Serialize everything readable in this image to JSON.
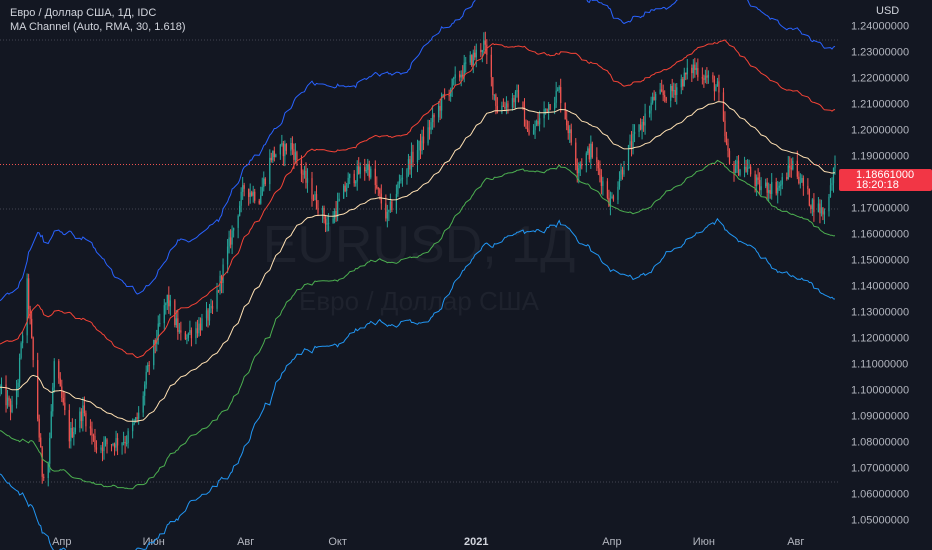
{
  "header": {
    "title": "Евро / Доллар США, 1Д, IDC",
    "indicator": "MA Channel (Auto, RMA, 30, 1.618)"
  },
  "currency": "USD",
  "watermark": {
    "symbol": "EURUSD, 1Д",
    "name": "Евро / Доллар США"
  },
  "last_price": {
    "price": "1.18661000",
    "countdown": "18:20:18",
    "color": "#f23645"
  },
  "colors": {
    "background": "#131722",
    "up_candle": "#26a69a",
    "down_candle": "#ef5350",
    "upper_band": "#2962ff",
    "upper_mid": "#f44336",
    "ma": "#ffe0b2",
    "lower_mid": "#4caf50",
    "lower_band": "#2196f3"
  },
  "chart_data": {
    "type": "candlestick",
    "title": "Евро / Доллар США, 1Д, IDC",
    "ylim": [
      1.045,
      1.255
    ],
    "y_ticks": [
      "1.24000000",
      "1.23000000",
      "1.22000000",
      "1.21000000",
      "1.20000000",
      "1.19000000",
      "1.18000000",
      "1.17000000",
      "1.16000000",
      "1.15000000",
      "1.14000000",
      "1.13000000",
      "1.12000000",
      "1.11000000",
      "1.10000000",
      "1.09000000",
      "1.08000000",
      "1.07000000",
      "1.06000000",
      "1.05000000"
    ],
    "x_ticks": [
      {
        "label": "Апр",
        "date": "2020-04-01"
      },
      {
        "label": "Июн",
        "date": "2020-06-01"
      },
      {
        "label": "Авг",
        "date": "2020-08-01"
      },
      {
        "label": "Окт",
        "date": "2020-10-01"
      },
      {
        "label": "2021",
        "date": "2021-01-01"
      },
      {
        "label": "Апр",
        "date": "2021-04-01"
      },
      {
        "label": "Июн",
        "date": "2021-06-01"
      },
      {
        "label": "Авг",
        "date": "2021-08-01"
      }
    ],
    "date_range": [
      "2020-02-20",
      "2021-08-27"
    ],
    "price_series": [
      [
        "2020-02-20",
        1.1
      ],
      [
        "2020-02-28",
        1.092
      ],
      [
        "2020-03-03",
        1.104
      ],
      [
        "2020-03-09",
        1.14
      ],
      [
        "2020-03-12",
        1.118
      ],
      [
        "2020-03-19",
        1.068
      ],
      [
        "2020-03-23",
        1.072
      ],
      [
        "2020-03-27",
        1.11
      ],
      [
        "2020-04-06",
        1.082
      ],
      [
        "2020-04-15",
        1.092
      ],
      [
        "2020-04-24",
        1.078
      ],
      [
        "2020-05-06",
        1.08
      ],
      [
        "2020-05-14",
        1.081
      ],
      [
        "2020-05-22",
        1.09
      ],
      [
        "2020-05-29",
        1.11
      ],
      [
        "2020-06-10",
        1.135
      ],
      [
        "2020-06-19",
        1.12
      ],
      [
        "2020-06-30",
        1.124
      ],
      [
        "2020-07-10",
        1.13
      ],
      [
        "2020-07-22",
        1.158
      ],
      [
        "2020-07-31",
        1.178
      ],
      [
        "2020-08-10",
        1.174
      ],
      [
        "2020-08-18",
        1.19
      ],
      [
        "2020-08-31",
        1.194
      ],
      [
        "2020-09-10",
        1.18
      ],
      [
        "2020-09-25",
        1.163
      ],
      [
        "2020-10-09",
        1.181
      ],
      [
        "2020-10-21",
        1.186
      ],
      [
        "2020-11-03",
        1.166
      ],
      [
        "2020-11-13",
        1.183
      ],
      [
        "2020-11-27",
        1.196
      ],
      [
        "2020-12-10",
        1.212
      ],
      [
        "2020-12-22",
        1.222
      ],
      [
        "2021-01-06",
        1.233
      ],
      [
        "2021-01-15",
        1.208
      ],
      [
        "2021-01-29",
        1.213
      ],
      [
        "2021-02-05",
        1.197
      ],
      [
        "2021-02-18",
        1.21
      ],
      [
        "2021-02-25",
        1.215
      ],
      [
        "2021-03-09",
        1.186
      ],
      [
        "2021-03-18",
        1.192
      ],
      [
        "2021-03-31",
        1.172
      ],
      [
        "2021-04-12",
        1.192
      ],
      [
        "2021-04-29",
        1.212
      ],
      [
        "2021-05-10",
        1.214
      ],
      [
        "2021-05-25",
        1.224
      ],
      [
        "2021-06-01",
        1.221
      ],
      [
        "2021-06-10",
        1.216
      ],
      [
        "2021-06-18",
        1.186
      ],
      [
        "2021-06-30",
        1.185
      ],
      [
        "2021-07-07",
        1.178
      ],
      [
        "2021-07-21",
        1.178
      ],
      [
        "2021-07-30",
        1.187
      ],
      [
        "2021-08-11",
        1.172
      ],
      [
        "2021-08-20",
        1.168
      ],
      [
        "2021-08-27",
        1.187
      ]
    ],
    "ma_channel": {
      "period": 30,
      "multiplier": 1.618,
      "type": "RMA"
    },
    "last": 1.18661
  }
}
